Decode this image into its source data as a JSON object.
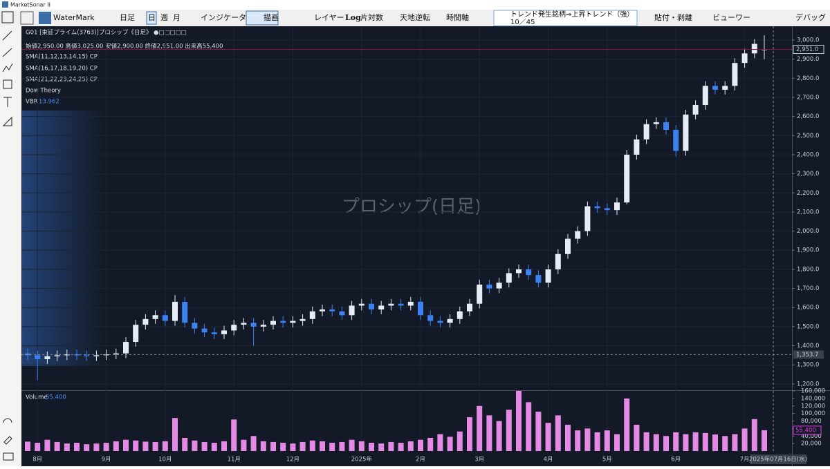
{
  "window": {
    "title": "MarketSonar II"
  },
  "toolbar": {
    "watermark": "WaterMark",
    "period": "日足",
    "day": "日",
    "week": "週",
    "month": "月",
    "indicator": "インジケータ",
    "draw": "描画",
    "layer": "レイヤー",
    "log": "Log",
    "semilog": "片対数",
    "flip": "天地逆転",
    "time_axis": "時間軸",
    "screen_line1": "トレンド発生銘柄⇒上昇トレンド（強）",
    "screen_line2": "10／45",
    "paste": "貼付・剥離",
    "viewer": "ビューワー",
    "debug": "デバッグ"
  },
  "chart_header": {
    "title": "G01 [東証プライム(3763)]プロシップ《日足》 ●□□□□□",
    "ohlc": "始値2,950.00 高値3,025.00 安値2,900.00 終値2,951.00 出来高55,400",
    "sma1": "SMA(11,12,13,14,15)  CP",
    "sma2": "SMA(16,17,18,19,20)  CP",
    "sma3": "SMA(21,22,23,24,25)  CP",
    "dow": "Dow Theory",
    "vbr_name": "VBR",
    "vbr_value": "13.962",
    "watermark": "プロシップ(日足)",
    "volume_name": "Volume",
    "volume_value": "55.400"
  },
  "chart_data": {
    "type": "candlestick",
    "categories": [
      null,
      "8月",
      null,
      null,
      null,
      null,
      null,
      null,
      "9月",
      null,
      null,
      null,
      null,
      null,
      "10月",
      null,
      null,
      null,
      null,
      null,
      null,
      "11月",
      null,
      null,
      null,
      null,
      null,
      "12月",
      null,
      null,
      null,
      null,
      null,
      null,
      "2025年",
      null,
      null,
      null,
      null,
      null,
      "2月",
      null,
      null,
      null,
      null,
      null,
      "3月",
      null,
      null,
      null,
      null,
      null,
      null,
      "4月",
      null,
      null,
      null,
      null,
      null,
      "5月",
      null,
      null,
      null,
      null,
      null,
      null,
      "6月",
      null,
      null,
      null,
      null,
      null,
      null,
      "7月",
      null,
      null
    ],
    "open": [
      1360,
      1350,
      1330,
      1345,
      1350,
      1355,
      1350,
      1345,
      1350,
      1355,
      1360,
      1420,
      1510,
      1540,
      1560,
      1530,
      1630,
      1520,
      1490,
      1470,
      1460,
      1480,
      1510,
      1520,
      1500,
      1510,
      1530,
      1520,
      1530,
      1540,
      1580,
      1590,
      1580,
      1560,
      1610,
      1620,
      1590,
      1610,
      1620,
      1610,
      1630,
      1560,
      1530,
      1520,
      1540,
      1580,
      1620,
      1720,
      1700,
      1730,
      1780,
      1800,
      1770,
      1730,
      1800,
      1880,
      1960,
      2000,
      2130,
      2120,
      2110,
      2150,
      2400,
      2480,
      2560,
      2570,
      2530,
      2420,
      2610,
      2660,
      2760,
      2740,
      2760,
      2880,
      2930,
      2950
    ],
    "high": [
      1385,
      1375,
      1370,
      1375,
      1380,
      1380,
      1375,
      1375,
      1380,
      1385,
      1445,
      1535,
      1565,
      1585,
      1585,
      1665,
      1655,
      1545,
      1515,
      1495,
      1505,
      1535,
      1545,
      1545,
      1535,
      1555,
      1555,
      1555,
      1565,
      1605,
      1615,
      1615,
      1605,
      1635,
      1645,
      1645,
      1635,
      1645,
      1645,
      1655,
      1655,
      1585,
      1555,
      1565,
      1605,
      1645,
      1745,
      1745,
      1755,
      1805,
      1825,
      1825,
      1795,
      1825,
      1905,
      1985,
      2025,
      2155,
      2155,
      2145,
      2175,
      2425,
      2505,
      2585,
      2595,
      2595,
      2555,
      2635,
      2685,
      2785,
      2785,
      2785,
      2905,
      2955,
      3005,
      3025
    ],
    "low": [
      1325,
      1220,
      1305,
      1320,
      1325,
      1325,
      1320,
      1320,
      1325,
      1330,
      1335,
      1395,
      1485,
      1515,
      1505,
      1505,
      1495,
      1465,
      1445,
      1435,
      1435,
      1455,
      1485,
      1400,
      1475,
      1485,
      1495,
      1495,
      1505,
      1515,
      1555,
      1555,
      1535,
      1535,
      1585,
      1565,
      1565,
      1585,
      1585,
      1585,
      1535,
      1505,
      1495,
      1495,
      1515,
      1555,
      1595,
      1675,
      1675,
      1705,
      1755,
      1745,
      1705,
      1705,
      1775,
      1855,
      1935,
      1975,
      2095,
      2085,
      2085,
      2140,
      2375,
      2455,
      2535,
      2505,
      2390,
      2395,
      2585,
      2635,
      2715,
      2715,
      2735,
      2855,
      2905,
      2900
    ],
    "close": [
      1350,
      1330,
      1345,
      1350,
      1355,
      1350,
      1345,
      1350,
      1355,
      1360,
      1420,
      1510,
      1540,
      1560,
      1530,
      1630,
      1520,
      1490,
      1470,
      1460,
      1480,
      1510,
      1520,
      1500,
      1510,
      1530,
      1520,
      1530,
      1540,
      1580,
      1590,
      1580,
      1560,
      1610,
      1620,
      1590,
      1610,
      1620,
      1610,
      1630,
      1560,
      1530,
      1520,
      1540,
      1580,
      1620,
      1720,
      1700,
      1730,
      1780,
      1800,
      1770,
      1730,
      1800,
      1880,
      1960,
      2000,
      2130,
      2120,
      2110,
      2150,
      2400,
      2480,
      2560,
      2570,
      2530,
      2420,
      2610,
      2660,
      2760,
      2740,
      2760,
      2880,
      2930,
      2980,
      2951
    ],
    "volume": [
      25000,
      22000,
      30000,
      24000,
      20000,
      22000,
      18000,
      20000,
      22000,
      26000,
      30000,
      28000,
      25000,
      24000,
      26000,
      88000,
      35000,
      28000,
      24000,
      22000,
      26000,
      84000,
      30000,
      40000,
      26000,
      24000,
      22000,
      20000,
      24000,
      28000,
      26000,
      22000,
      24000,
      30000,
      26000,
      22000,
      20000,
      24000,
      22000,
      26000,
      30000,
      35000,
      45000,
      38000,
      52000,
      90000,
      120000,
      95000,
      80000,
      110000,
      160000,
      130000,
      105000,
      75000,
      95000,
      70000,
      55000,
      60000,
      50000,
      55000,
      45000,
      140000,
      70000,
      50000,
      45000,
      40000,
      50000,
      45000,
      50000,
      48000,
      44000,
      40000,
      45000,
      60000,
      85000,
      55400
    ],
    "up_color": "#e6ecf5",
    "down_color": "#3b82f0",
    "volume_color": "#e48ae4",
    "ylim": [
      1167,
      3065
    ],
    "yticks": [
      {
        "value": 1200,
        "label": "1,200.0"
      },
      {
        "value": 1300,
        "label": "1,300.0"
      },
      {
        "value": 1400,
        "label": "1,400.0"
      },
      {
        "value": 1500,
        "label": "1,500.0"
      },
      {
        "value": 1600,
        "label": "1,600.0"
      },
      {
        "value": 1700,
        "label": "1,700.0"
      },
      {
        "value": 1800,
        "label": "1,800.0"
      },
      {
        "value": 1900,
        "label": "1,900.0"
      },
      {
        "value": 2000,
        "label": "2,000.0"
      },
      {
        "value": 2100,
        "label": "2,100.0"
      },
      {
        "value": 2200,
        "label": "2,200.0"
      },
      {
        "value": 2300,
        "label": "2,300.0"
      },
      {
        "value": 2400,
        "label": "2,400.0"
      },
      {
        "value": 2500,
        "label": "2,500.0"
      },
      {
        "value": 2600,
        "label": "2,600.0"
      },
      {
        "value": 2700,
        "label": "2,700.0"
      },
      {
        "value": 2800,
        "label": "2,800.0"
      },
      {
        "value": 2900,
        "label": "2,900.0"
      },
      {
        "value": 3000,
        "label": "3,000.0"
      }
    ],
    "vlim": [
      0,
      160000
    ],
    "vticks": [
      {
        "value": 20000,
        "label": "20,000"
      },
      {
        "value": 40000,
        "label": "40,000"
      },
      {
        "value": 60000,
        "label": "60,000"
      },
      {
        "value": 80000,
        "label": "80,000"
      },
      {
        "value": 100000,
        "label": "100,000"
      },
      {
        "value": 120000,
        "label": "120,000"
      },
      {
        "value": 140000,
        "label": "140,000"
      },
      {
        "value": 160000,
        "label": "160,000"
      }
    ],
    "last_price": {
      "value": 2951,
      "label": "2,951.0"
    },
    "last_volume": {
      "value": 55400,
      "label": "55,400"
    },
    "crosshair_price": {
      "value": 1353.7,
      "label": "1,353.7"
    },
    "crosshair_date": "2025年07月16日(水)",
    "grid": true
  }
}
